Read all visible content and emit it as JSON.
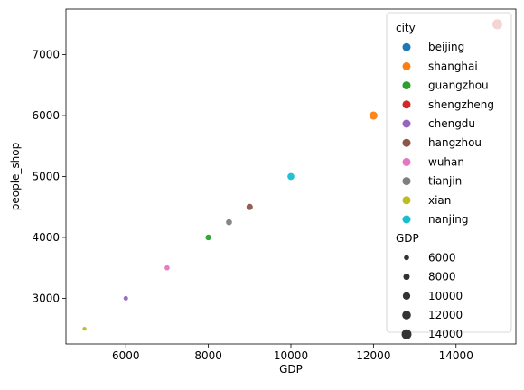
{
  "chart_data": {
    "type": "scatter",
    "xlabel": "GDP",
    "ylabel": "people_shop",
    "xlim": [
      4550,
      15450
    ],
    "ylim": [
      2250,
      7750
    ],
    "xticks": [
      6000,
      8000,
      10000,
      12000,
      14000
    ],
    "yticks": [
      3000,
      4000,
      5000,
      6000,
      7000
    ],
    "grid": false,
    "points": [
      {
        "city": "beijing",
        "x": 15000,
        "y": 7500,
        "color": "#1f77b4"
      },
      {
        "city": "shanghai",
        "x": 12000,
        "y": 6000,
        "color": "#ff7f0e"
      },
      {
        "city": "guangzhou",
        "x": 8000,
        "y": 4000,
        "color": "#2ca02c"
      },
      {
        "city": "shengzheng",
        "x": 15000,
        "y": 7500,
        "color": "#d62728"
      },
      {
        "city": "chengdu",
        "x": 6000,
        "y": 3000,
        "color": "#9467bd"
      },
      {
        "city": "hangzhou",
        "x": 9000,
        "y": 4500,
        "color": "#8c564b"
      },
      {
        "city": "wuhan",
        "x": 7000,
        "y": 3500,
        "color": "#e377c2"
      },
      {
        "city": "tianjin",
        "x": 8500,
        "y": 4250,
        "color": "#7f7f7f"
      },
      {
        "city": "xian",
        "x": 5000,
        "y": 2500,
        "color": "#bcbd22"
      },
      {
        "city": "nanjing",
        "x": 10000,
        "y": 5000,
        "color": "#17becf"
      }
    ],
    "legend": {
      "placement": "upper-right",
      "hue_title": "city",
      "hue_entries": [
        {
          "label": "beijing",
          "color": "#1f77b4"
        },
        {
          "label": "shanghai",
          "color": "#ff7f0e"
        },
        {
          "label": "guangzhou",
          "color": "#2ca02c"
        },
        {
          "label": "shengzheng",
          "color": "#d62728"
        },
        {
          "label": "chengdu",
          "color": "#9467bd"
        },
        {
          "label": "hangzhou",
          "color": "#8c564b"
        },
        {
          "label": "wuhan",
          "color": "#e377c2"
        },
        {
          "label": "tianjin",
          "color": "#7f7f7f"
        },
        {
          "label": "xian",
          "color": "#bcbd22"
        },
        {
          "label": "nanjing",
          "color": "#17becf"
        }
      ],
      "size_title": "GDP",
      "size_entries": [
        {
          "label": "6000",
          "value": 6000
        },
        {
          "label": "8000",
          "value": 8000
        },
        {
          "label": "10000",
          "value": 10000
        },
        {
          "label": "12000",
          "value": 12000
        },
        {
          "label": "14000",
          "value": 14000
        }
      ],
      "size_marker_color": "#333333"
    }
  }
}
